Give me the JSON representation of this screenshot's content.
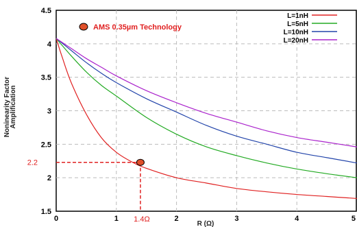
{
  "chart_data": {
    "type": "line",
    "title": "AMS 0.35µm Technology",
    "xlabel": "R (Ω)",
    "ylabel_lines": [
      "Noninearity Factor",
      "Amplification"
    ],
    "xlim": [
      0,
      5
    ],
    "ylim": [
      1.5,
      4.5
    ],
    "x_ticks": [
      "0",
      "1",
      "2",
      "3",
      "4",
      "5"
    ],
    "y_ticks": [
      "1.5",
      "2",
      "2.5",
      "3",
      "3.5",
      "4",
      "4.5"
    ],
    "grid": true,
    "grid_style": "dashed",
    "legend_position": "top-right",
    "series": [
      {
        "name": "L=1nH",
        "color": "#e02020",
        "x": [
          0,
          0.1,
          0.25,
          0.5,
          0.75,
          1.0,
          1.25,
          1.5,
          2.0,
          2.5,
          3.0,
          3.5,
          4.0,
          4.5,
          5.0
        ],
        "y": [
          4.08,
          3.8,
          3.42,
          2.95,
          2.6,
          2.38,
          2.24,
          2.14,
          2.0,
          1.92,
          1.84,
          1.79,
          1.75,
          1.72,
          1.69
        ]
      },
      {
        "name": "L=5nH",
        "color": "#22aa22",
        "x": [
          0,
          0.25,
          0.5,
          0.75,
          1.0,
          1.5,
          2.0,
          2.5,
          3.0,
          3.5,
          4.0,
          4.5,
          5.0
        ],
        "y": [
          4.08,
          3.82,
          3.58,
          3.38,
          3.22,
          2.9,
          2.65,
          2.46,
          2.33,
          2.22,
          2.13,
          2.06,
          2.0
        ]
      },
      {
        "name": "L=10nH",
        "color": "#2244aa",
        "x": [
          0,
          0.25,
          0.5,
          0.75,
          1.0,
          1.5,
          2.0,
          2.5,
          3.0,
          3.5,
          4.0,
          4.5,
          5.0
        ],
        "y": [
          4.08,
          3.9,
          3.72,
          3.56,
          3.42,
          3.18,
          2.98,
          2.78,
          2.62,
          2.5,
          2.38,
          2.3,
          2.22
        ]
      },
      {
        "name": "L=20nH",
        "color": "#aa22cc",
        "x": [
          0,
          0.25,
          0.5,
          0.75,
          1.0,
          1.5,
          2.0,
          2.5,
          3.0,
          3.5,
          4.0,
          4.5,
          5.0
        ],
        "y": [
          4.08,
          3.93,
          3.78,
          3.65,
          3.52,
          3.3,
          3.12,
          2.96,
          2.83,
          2.7,
          2.6,
          2.53,
          2.46
        ]
      }
    ],
    "annotation": {
      "point_x": 1.4,
      "point_y": 2.23,
      "x_label": "1.4Ω",
      "y_label": "2.2",
      "color": "#e02020",
      "marker_fill": "#e0502a"
    }
  }
}
